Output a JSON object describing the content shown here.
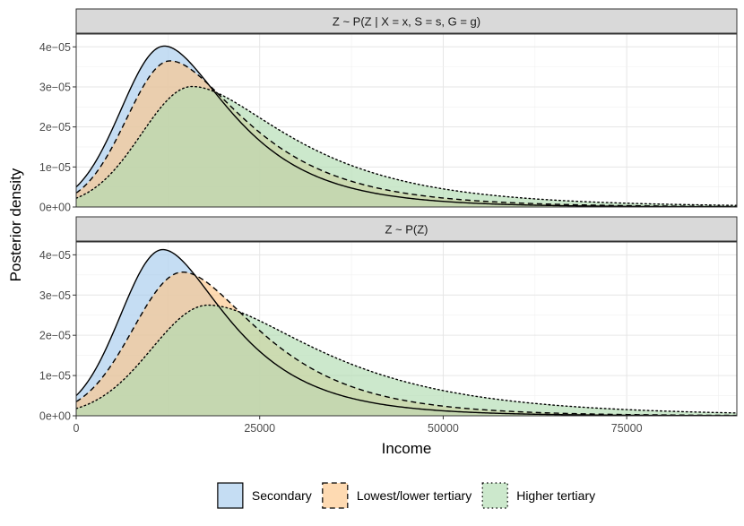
{
  "chart_data": {
    "type": "area",
    "xlabel": "Income",
    "ylabel": "Posterior density",
    "xlim": [
      0,
      90000
    ],
    "ylim": [
      0,
      4.32e-05
    ],
    "x_ticks": [
      0,
      25000,
      50000,
      75000
    ],
    "x_tick_labels": [
      "0",
      "25000",
      "50000",
      "75000"
    ],
    "y_ticks": [
      0,
      1e-05,
      2e-05,
      3e-05,
      4e-05
    ],
    "y_tick_labels": [
      "0e+00",
      "1e−05",
      "2e−05",
      "3e−05",
      "4e−05"
    ],
    "panels": [
      {
        "title": "Z ~ P(Z | X = x, S = s, G = g)",
        "series": [
          {
            "name": "Secondary",
            "y0": 5e-06,
            "peak_x": 12000,
            "peak_y": 4.02e-05,
            "tail_value_at_90000": 5e-08
          },
          {
            "name": "Lowest/lower tertiary",
            "y0": 3.5e-06,
            "peak_x": 12800,
            "peak_y": 3.65e-05,
            "tail_value_at_90000": 1.2e-07
          },
          {
            "name": "Higher tertiary",
            "y0": 2.2e-06,
            "peak_x": 15800,
            "peak_y": 3.01e-05,
            "tail_value_at_90000": 4e-07
          }
        ]
      },
      {
        "title": "Z ~ P(Z)",
        "series": [
          {
            "name": "Secondary",
            "y0": 5e-06,
            "peak_x": 11800,
            "peak_y": 4.13e-05,
            "tail_value_at_90000": 4e-08
          },
          {
            "name": "Lowest/lower tertiary",
            "y0": 3.5e-06,
            "peak_x": 14500,
            "peak_y": 3.57e-05,
            "tail_value_at_90000": 1e-07
          },
          {
            "name": "Higher tertiary",
            "y0": 1.8e-06,
            "peak_x": 18000,
            "peak_y": 2.75e-05,
            "tail_value_at_90000": 7e-07
          }
        ]
      }
    ],
    "legend": [
      {
        "name": "Secondary",
        "fill": "#a6cbec",
        "line": "#000000",
        "dash": "solid"
      },
      {
        "name": "Lowest/lower tertiary",
        "fill": "#fdc689",
        "line": "#000000",
        "dash": "dashed"
      },
      {
        "name": "Higher tertiary",
        "fill": "#b1dcb1",
        "line": "#000000",
        "dash": "dotted"
      }
    ],
    "legend_position": "bottom"
  }
}
